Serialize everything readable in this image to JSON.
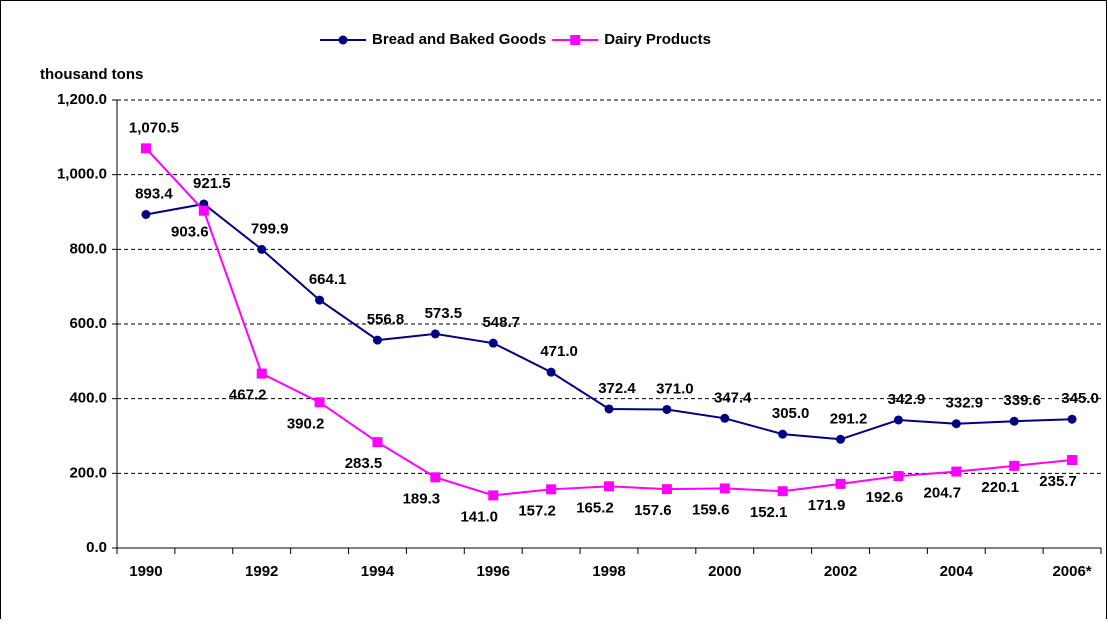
{
  "chart_data": {
    "type": "line",
    "ylabel": "thousand tons",
    "categories": [
      "1990",
      null,
      "1992",
      null,
      "1994",
      null,
      "1996",
      null,
      "1998",
      null,
      "2000",
      null,
      "2002",
      null,
      "2004",
      null,
      "2006*"
    ],
    "series": [
      {
        "name": "Bread and Baked Goods",
        "color": "#000080",
        "marker": "circle",
        "values": [
          893.4,
          921.5,
          799.9,
          664.1,
          556.8,
          573.5,
          548.7,
          471.0,
          372.4,
          371.0,
          347.4,
          305.0,
          291.2,
          342.9,
          332.9,
          339.6,
          345.0
        ],
        "value_labels": [
          "893.4",
          "921.5",
          "799.9",
          "664.1",
          "556.8",
          "573.5",
          "548.7",
          "471.0",
          "372.4",
          "371.0",
          "347.4",
          "305.0",
          "291.2",
          "342.9",
          "332.9",
          "339.6",
          "345.0"
        ]
      },
      {
        "name": "Dairy Products",
        "color": "#ff00ff",
        "marker": "square",
        "values": [
          1070.5,
          903.6,
          467.2,
          390.2,
          283.5,
          189.3,
          141.0,
          157.2,
          165.2,
          157.6,
          159.6,
          152.1,
          171.9,
          192.6,
          204.7,
          220.1,
          235.7
        ],
        "value_labels": [
          "1,070.5",
          "903.6",
          "467.2",
          "390.2",
          "283.5",
          "189.3",
          "141.0",
          "157.2",
          "165.2",
          "157.6",
          "159.6",
          "152.1",
          "171.9",
          "192.6",
          "204.7",
          "220.1",
          "235.7"
        ]
      }
    ],
    "ylim": [
      0,
      1200
    ],
    "yticks": [
      {
        "value": 0,
        "label": "0.0"
      },
      {
        "value": 200,
        "label": "200.0"
      },
      {
        "value": 400,
        "label": "400.0"
      },
      {
        "value": 600,
        "label": "600.0"
      },
      {
        "value": 800,
        "label": "800.0"
      },
      {
        "value": 1000,
        "label": "1,000.0"
      },
      {
        "value": 1200,
        "label": "1,200.0"
      }
    ],
    "grid": true,
    "legend": "top"
  }
}
